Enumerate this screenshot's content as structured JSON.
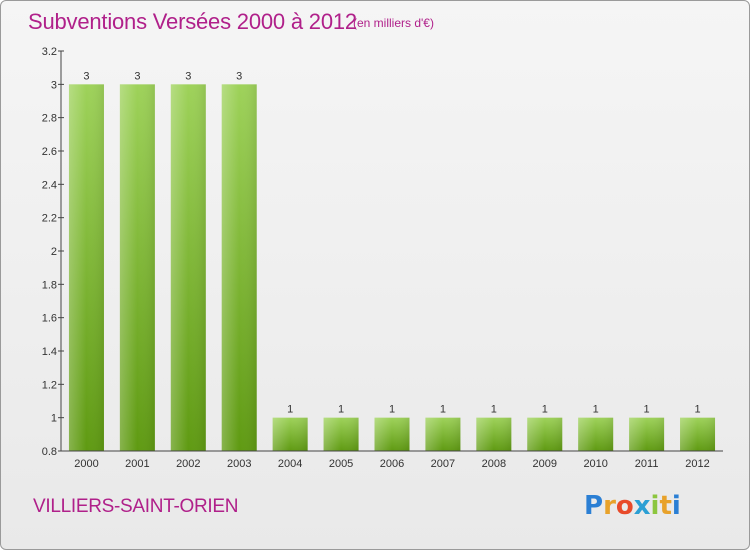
{
  "header": {
    "title": "Subventions Versées 2000 à 2012",
    "unit_note": "(en milliers d'€)"
  },
  "footer": {
    "commune": "VILLIERS-SAINT-ORIEN",
    "logo_letters": [
      "P",
      "r",
      "o",
      "x",
      "i",
      "t",
      "i"
    ],
    "logo_colors": [
      "#2b7fd4",
      "#e8a22a",
      "#e84a2a",
      "#2b9fd4",
      "#8cc63e",
      "#e8a22a",
      "#2b7fd4"
    ]
  },
  "chart_data": {
    "type": "bar",
    "title": "Subventions Versées 2000 à 2012",
    "categories": [
      "2000",
      "2001",
      "2002",
      "2003",
      "2004",
      "2005",
      "2006",
      "2007",
      "2008",
      "2009",
      "2010",
      "2011",
      "2012"
    ],
    "values": [
      3,
      3,
      3,
      3,
      1,
      1,
      1,
      1,
      1,
      1,
      1,
      1,
      1
    ],
    "value_labels": [
      "3",
      "3",
      "3",
      "3",
      "1",
      "1",
      "1",
      "1",
      "1",
      "1",
      "1",
      "1",
      "1"
    ],
    "ylim": [
      0.8,
      3.2
    ],
    "yticks": [
      "0.8",
      "1",
      "1.2",
      "1.4",
      "1.6",
      "1.8",
      "2",
      "2.2",
      "2.4",
      "2.6",
      "2.8",
      "3",
      "3.2"
    ],
    "ytick_values": [
      0.8,
      1,
      1.2,
      1.4,
      1.6,
      1.8,
      2,
      2.2,
      2.4,
      2.6,
      2.8,
      3,
      3.2
    ],
    "grid": false,
    "legend": "none",
    "bar_color_top": "#9ed25a",
    "bar_color_bottom": "#5f9a12",
    "accent_color": "#b0208a"
  }
}
